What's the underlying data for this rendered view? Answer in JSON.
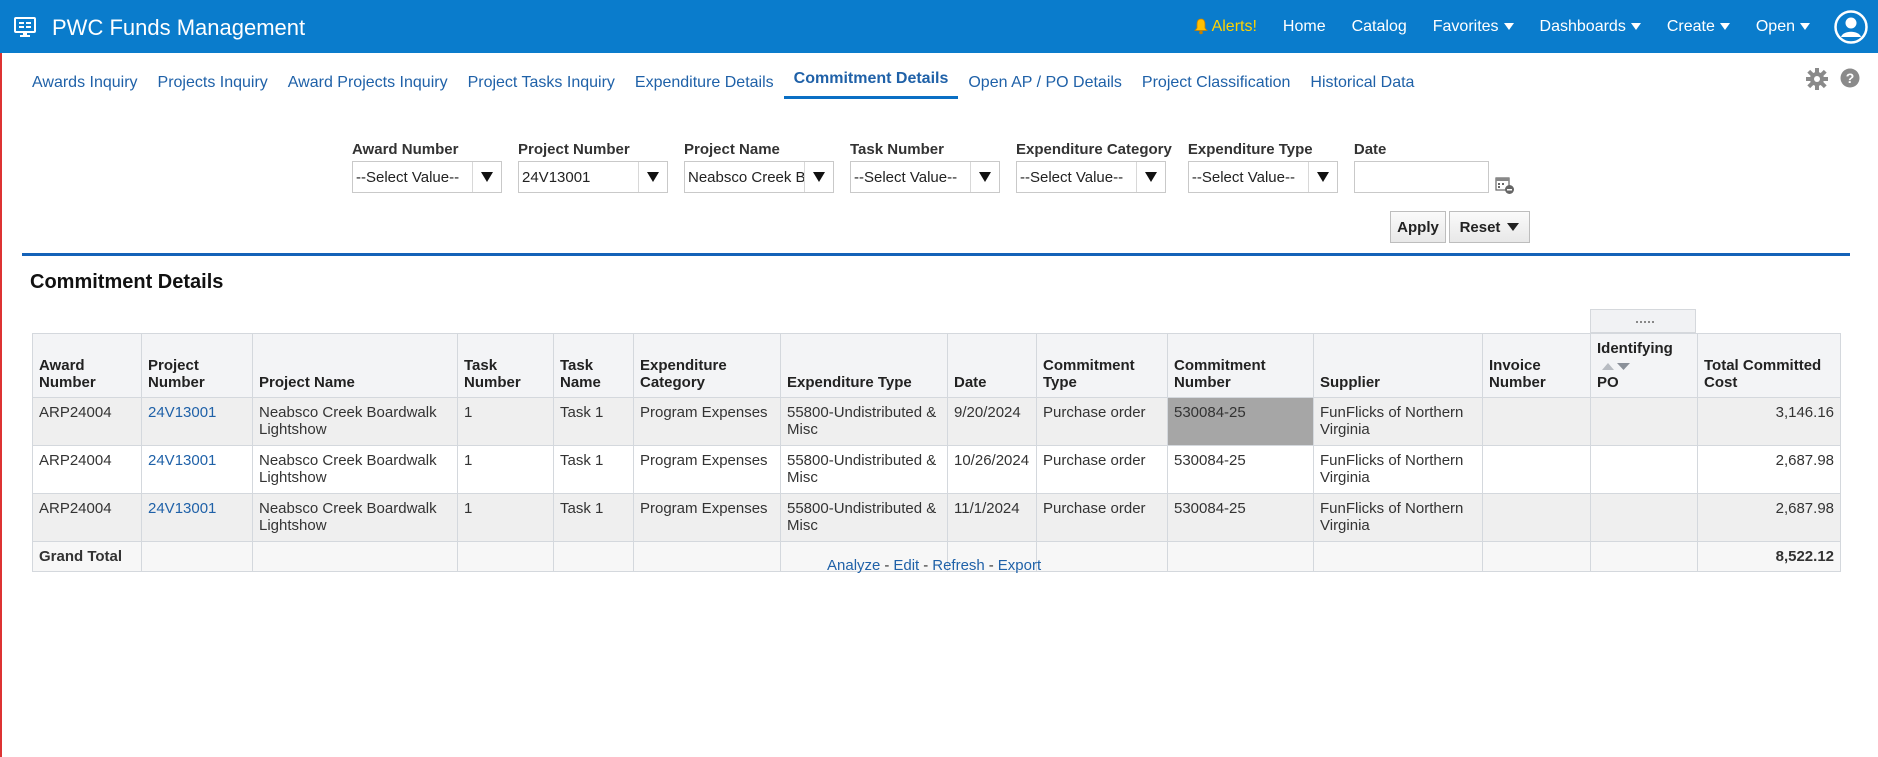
{
  "header": {
    "title": "PWC Funds Management",
    "nav": {
      "alerts": "Alerts!",
      "home": "Home",
      "catalog": "Catalog",
      "favorites": "Favorites",
      "dashboards": "Dashboards",
      "create": "Create",
      "open": "Open"
    },
    "colors": {
      "bar": "#0a7ccc",
      "alerts": "#ffd200"
    }
  },
  "tabs": [
    {
      "label": "Awards Inquiry"
    },
    {
      "label": "Projects Inquiry"
    },
    {
      "label": "Award Projects Inquiry"
    },
    {
      "label": "Project Tasks Inquiry"
    },
    {
      "label": "Expenditure Details"
    },
    {
      "label": "Commitment Details",
      "active": true
    },
    {
      "label": "Open AP / PO Details"
    },
    {
      "label": "Project Classification"
    },
    {
      "label": "Historical Data"
    }
  ],
  "filters": {
    "award_number": {
      "label": "Award Number",
      "value": "--Select Value--"
    },
    "project_number": {
      "label": "Project Number",
      "value": "24V13001"
    },
    "project_name": {
      "label": "Project Name",
      "value": "Neabsco Creek Bo"
    },
    "task_number": {
      "label": "Task Number",
      "value": "--Select Value--"
    },
    "expenditure_category": {
      "label": "Expenditure Category",
      "value": "--Select Value--"
    },
    "expenditure_type": {
      "label": "Expenditure Type",
      "value": "--Select Value--"
    },
    "date": {
      "label": "Date",
      "value": ""
    },
    "apply_label": "Apply",
    "reset_label": "Reset"
  },
  "section_title": "Commitment Details",
  "table": {
    "headers": {
      "award_number": [
        "Award",
        "Number"
      ],
      "project_number": [
        "Project",
        "Number"
      ],
      "project_name": "Project Name",
      "task_number": [
        "Task",
        "Number"
      ],
      "task_name": [
        "Task",
        "Name"
      ],
      "expenditure_category": [
        "Expenditure",
        "Category"
      ],
      "expenditure_type": "Expenditure Type",
      "date": "Date",
      "commitment_type": [
        "Commitment",
        "Type"
      ],
      "commitment_number": [
        "Commitment",
        "Number"
      ],
      "supplier": "Supplier",
      "invoice_number": [
        "Invoice",
        "Number"
      ],
      "identifying_po": [
        "Identifying",
        "PO"
      ],
      "total_committed_cost": [
        "Total Committed",
        "Cost"
      ]
    },
    "rows": [
      {
        "award_number": "ARP24004",
        "project_number": "24V13001",
        "project_name": [
          "Neabsco Creek Boardwalk",
          "Lightshow"
        ],
        "task_number": "1",
        "task_name": "Task 1",
        "expenditure_category": "Program Expenses",
        "expenditure_type": [
          "55800-Undistributed &",
          "Misc"
        ],
        "date": "9/20/2024",
        "commitment_type": "Purchase order",
        "commitment_number": "530084-25",
        "supplier": [
          "FunFlicks of Northern",
          "Virginia"
        ],
        "invoice_number": "",
        "identifying_po": "",
        "total_committed_cost": "3,146.16"
      },
      {
        "award_number": "ARP24004",
        "project_number": "24V13001",
        "project_name": [
          "Neabsco Creek Boardwalk",
          "Lightshow"
        ],
        "task_number": "1",
        "task_name": "Task 1",
        "expenditure_category": "Program Expenses",
        "expenditure_type": [
          "55800-Undistributed &",
          "Misc"
        ],
        "date": "10/26/2024",
        "commitment_type": "Purchase order",
        "commitment_number": "530084-25",
        "supplier": [
          "FunFlicks of Northern",
          "Virginia"
        ],
        "invoice_number": "",
        "identifying_po": "",
        "total_committed_cost": "2,687.98"
      },
      {
        "award_number": "ARP24004",
        "project_number": "24V13001",
        "project_name": [
          "Neabsco Creek Boardwalk",
          "Lightshow"
        ],
        "task_number": "1",
        "task_name": "Task 1",
        "expenditure_category": "Program Expenses",
        "expenditure_type": [
          "55800-Undistributed &",
          "Misc"
        ],
        "date": "11/1/2024",
        "commitment_type": "Purchase order",
        "commitment_number": "530084-25",
        "supplier": [
          "FunFlicks of Northern",
          "Virginia"
        ],
        "invoice_number": "",
        "identifying_po": "",
        "total_committed_cost": "2,687.98"
      }
    ],
    "grand_total_label": "Grand Total",
    "grand_total_value": "8,522.12"
  },
  "footer_links": {
    "analyze": "Analyze",
    "edit": "Edit",
    "refresh": "Refresh",
    "export": "Export",
    "separator": "-"
  }
}
